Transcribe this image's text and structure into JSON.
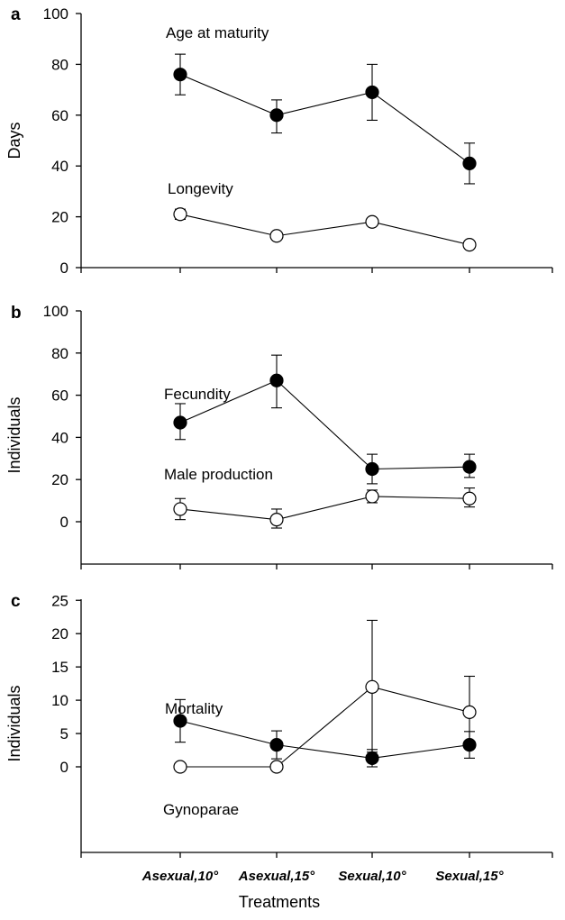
{
  "figure": {
    "xlabel": "Treatments",
    "categories": [
      "Asexual,10°",
      "Asexual,15°",
      "Sexual,10°",
      "Sexual,15°"
    ]
  },
  "chart_data": [
    {
      "type": "line",
      "panel": "a",
      "ylabel": "Days",
      "ylim": [
        0,
        100
      ],
      "yticks": [
        0,
        20,
        40,
        60,
        80,
        100
      ],
      "series": [
        {
          "label": "Age at maturity",
          "marker": "filled",
          "values": [
            76,
            60,
            69,
            41
          ],
          "err_low": [
            68,
            53,
            58,
            33
          ],
          "err_high": [
            84,
            66,
            80,
            49
          ]
        },
        {
          "label": "Longevity",
          "marker": "open",
          "values": [
            21,
            12.5,
            18,
            9
          ],
          "err_low": [
            19,
            11.5,
            17,
            8.5
          ],
          "err_high": [
            23,
            13.5,
            19,
            9.5
          ]
        }
      ]
    },
    {
      "type": "line",
      "panel": "b",
      "ylabel": "Individuals",
      "ylim": [
        -20,
        100
      ],
      "yticks": [
        0,
        20,
        40,
        60,
        80,
        100
      ],
      "series": [
        {
          "label": "Fecundity",
          "marker": "filled",
          "values": [
            47,
            67,
            25,
            26
          ],
          "err_low": [
            39,
            54,
            18,
            21
          ],
          "err_high": [
            56,
            79,
            32,
            32
          ]
        },
        {
          "label": "Male production",
          "marker": "open",
          "values": [
            6,
            1,
            12,
            11
          ],
          "err_low": [
            1,
            -3,
            9,
            7
          ],
          "err_high": [
            11,
            6,
            15,
            16
          ]
        }
      ]
    },
    {
      "type": "line",
      "panel": "c",
      "ylabel": "Individuals",
      "ylim": [
        -5,
        25
      ],
      "yticks": [
        0,
        5,
        10,
        15,
        20,
        25
      ],
      "series": [
        {
          "label": "Mortality",
          "marker": "filled",
          "values": [
            6.9,
            3.3,
            1.3,
            3.3
          ],
          "err_low": [
            3.7,
            1.2,
            0,
            1.3
          ],
          "err_high": [
            10.1,
            5.4,
            2.6,
            5.3
          ]
        },
        {
          "label": "Gynoparae",
          "marker": "open",
          "values": [
            0,
            0,
            12,
            8.2
          ],
          "err_low": [
            0,
            0,
            2.2,
            2.8
          ],
          "err_high": [
            0,
            0,
            22,
            13.6
          ]
        }
      ]
    }
  ]
}
